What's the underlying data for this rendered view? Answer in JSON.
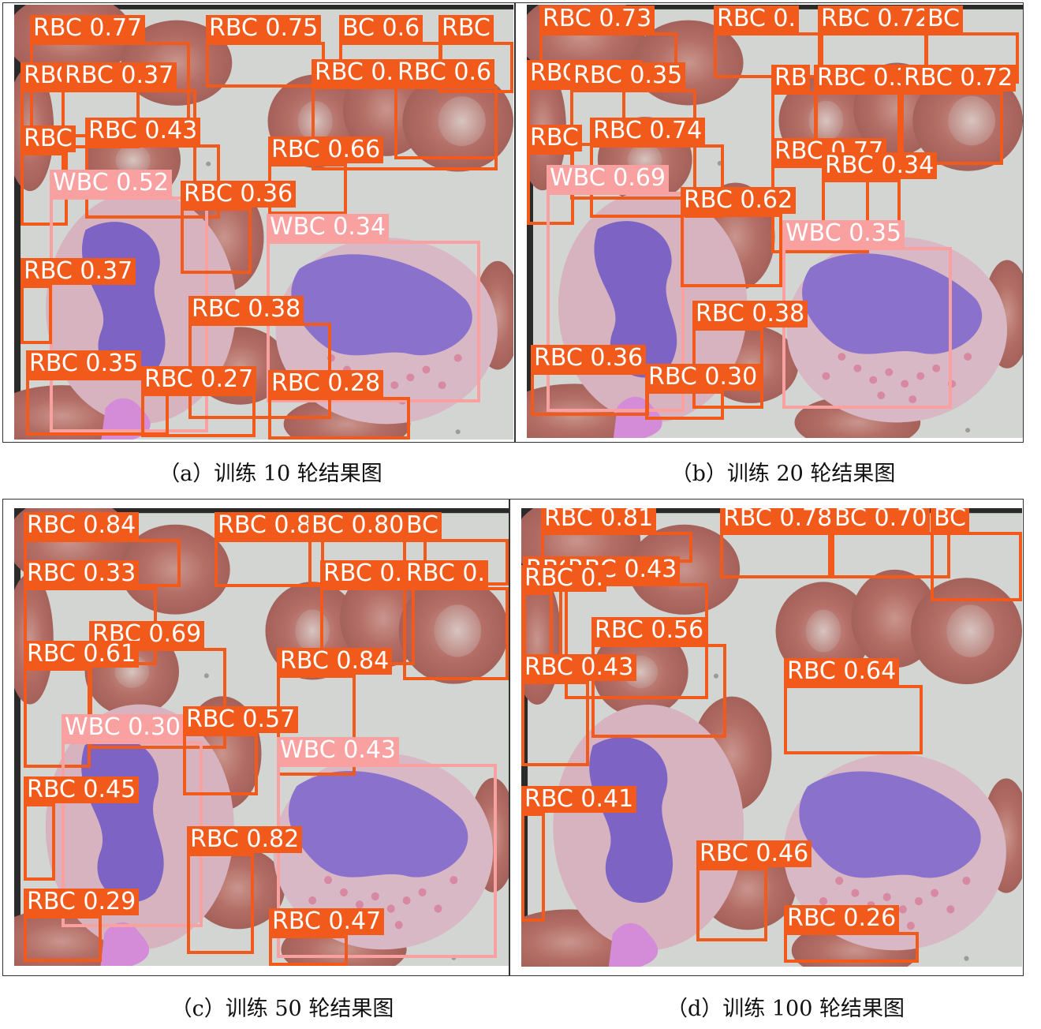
{
  "colors": {
    "rbc": "#f25a1c",
    "wbc": "#f9a0a0",
    "background": "#d5d6d3"
  },
  "panels": [
    {
      "caption": "（a）训练 10 轮结果图",
      "detections": [
        {
          "label": "RBC 0.77",
          "cls": "rbc"
        },
        {
          "label": "RBC 0.75",
          "cls": "rbc"
        },
        {
          "label": "BC 0.6",
          "cls": "rbc"
        },
        {
          "label": "RBC",
          "cls": "rbc"
        },
        {
          "label": "RBC 0.49",
          "cls": "rbc"
        },
        {
          "label": "RBC 0.37",
          "cls": "rbc"
        },
        {
          "label": "RBC 0.62",
          "cls": "rbc"
        },
        {
          "label": "RBC 0.6",
          "cls": "rbc"
        },
        {
          "label": "RBC 0.43",
          "cls": "rbc"
        },
        {
          "label": "RBC",
          "cls": "rbc"
        },
        {
          "label": "RBC 0.66",
          "cls": "rbc"
        },
        {
          "label": "WBC 0.52",
          "cls": "wbc"
        },
        {
          "label": "RBC 0.36",
          "cls": "rbc"
        },
        {
          "label": "WBC 0.34",
          "cls": "wbc"
        },
        {
          "label": "RBC 0.37",
          "cls": "rbc"
        },
        {
          "label": "RBC 0.38",
          "cls": "rbc"
        },
        {
          "label": "RBC 0.35",
          "cls": "rbc"
        },
        {
          "label": "RBC 0.27",
          "cls": "rbc"
        },
        {
          "label": "RBC 0.28",
          "cls": "rbc"
        }
      ]
    },
    {
      "caption": "（b）训练 20 轮结果图",
      "detections": [
        {
          "label": "RBC 0.73",
          "cls": "rbc"
        },
        {
          "label": "RBC 0.",
          "cls": "rbc"
        },
        {
          "label": "RBC 0.72",
          "cls": "rbc"
        },
        {
          "label": "BC",
          "cls": "rbc"
        },
        {
          "label": "RBC 0.35",
          "cls": "rbc"
        },
        {
          "label": "RBC 0.35",
          "cls": "rbc"
        },
        {
          "label": "RB",
          "cls": "rbc"
        },
        {
          "label": "RBC 0.36",
          "cls": "rbc"
        },
        {
          "label": "RBC 0.72",
          "cls": "rbc"
        },
        {
          "label": "RBC 0.74",
          "cls": "rbc"
        },
        {
          "label": "RBC",
          "cls": "rbc"
        },
        {
          "label": "RBC 0.77",
          "cls": "rbc"
        },
        {
          "label": "RBC 0.34",
          "cls": "rbc"
        },
        {
          "label": "WBC 0.69",
          "cls": "wbc"
        },
        {
          "label": "RBC 0.62",
          "cls": "rbc"
        },
        {
          "label": "WBC 0.35",
          "cls": "wbc"
        },
        {
          "label": "RBC 0.38",
          "cls": "rbc"
        },
        {
          "label": "RBC 0.36",
          "cls": "rbc"
        },
        {
          "label": "RBC 0.30",
          "cls": "rbc"
        }
      ]
    },
    {
      "caption": "（c）训练 50 轮结果图",
      "detections": [
        {
          "label": "RBC 0.84",
          "cls": "rbc"
        },
        {
          "label": "RBC 0.85",
          "cls": "rbc"
        },
        {
          "label": "BC 0.80",
          "cls": "rbc"
        },
        {
          "label": "BC",
          "cls": "rbc"
        },
        {
          "label": "RBC 0.33",
          "cls": "rbc"
        },
        {
          "label": "RBC 0.36",
          "cls": "rbc"
        },
        {
          "label": "RBC 0.",
          "cls": "rbc"
        },
        {
          "label": "RBC 0.69",
          "cls": "rbc"
        },
        {
          "label": "RBC 0.61",
          "cls": "rbc"
        },
        {
          "label": "RBC 0.84",
          "cls": "rbc"
        },
        {
          "label": "WBC 0.30",
          "cls": "wbc"
        },
        {
          "label": "RBC 0.57",
          "cls": "rbc"
        },
        {
          "label": "WBC 0.43",
          "cls": "wbc"
        },
        {
          "label": "RBC 0.45",
          "cls": "rbc"
        },
        {
          "label": "RBC 0.82",
          "cls": "rbc"
        },
        {
          "label": "RBC 0.29",
          "cls": "rbc"
        },
        {
          "label": "RBC 0.47",
          "cls": "rbc"
        }
      ]
    },
    {
      "caption": "（d）训练 100 轮结果图",
      "detections": [
        {
          "label": "RBC 0.81",
          "cls": "rbc"
        },
        {
          "label": "RBC 0.78",
          "cls": "rbc"
        },
        {
          "label": "BC 0.70",
          "cls": "rbc"
        },
        {
          "label": "BC",
          "cls": "rbc"
        },
        {
          "label": "RBC 0.26",
          "cls": "rbc"
        },
        {
          "label": "RBC 0.43",
          "cls": "rbc"
        },
        {
          "label": "RBC 0.",
          "cls": "rbc"
        },
        {
          "label": "RBC 0.56",
          "cls": "rbc"
        },
        {
          "label": "RBC 0.43",
          "cls": "rbc"
        },
        {
          "label": "RBC 0.64",
          "cls": "rbc"
        },
        {
          "label": "RBC 0.41",
          "cls": "rbc"
        },
        {
          "label": "RBC 0.46",
          "cls": "rbc"
        },
        {
          "label": "RBC 0.26",
          "cls": "rbc"
        }
      ]
    }
  ]
}
